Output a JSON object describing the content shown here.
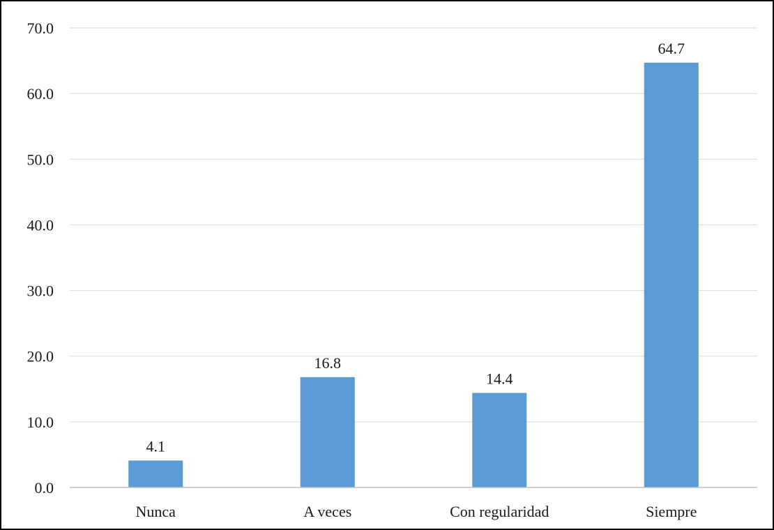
{
  "chart_data": {
    "type": "bar",
    "title": "",
    "xlabel": "",
    "ylabel": "",
    "categories": [
      "Nunca",
      "A veces",
      "Con regularidad",
      "Siempre"
    ],
    "values": [
      4.1,
      16.8,
      14.4,
      64.7
    ],
    "value_labels": [
      "4.1",
      "16.8",
      "14.4",
      "64.7"
    ],
    "ylim": [
      0,
      70
    ],
    "yticks": [
      0,
      10,
      20,
      30,
      40,
      50,
      60,
      70
    ],
    "ytick_labels": [
      "0.0",
      "10.0",
      "20.0",
      "30.0",
      "40.0",
      "50.0",
      "60.0",
      "70.0"
    ],
    "grid": true,
    "legend": "none",
    "colors": {
      "bar": "#5b9bd5",
      "grid": "#d9d9d9",
      "axis": "#bfbfbf",
      "text": "#1a1a1a",
      "border": "#000000"
    }
  }
}
